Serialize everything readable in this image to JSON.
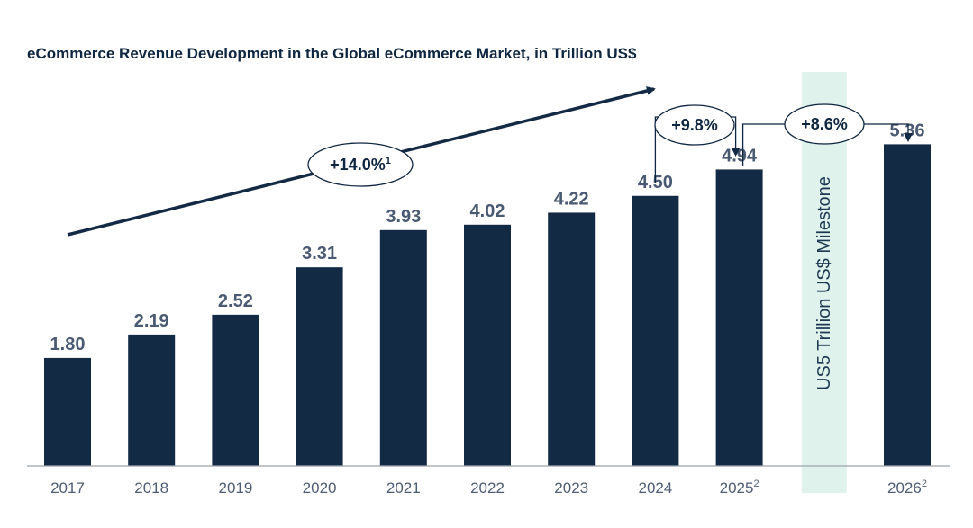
{
  "chart_data": {
    "type": "bar",
    "title": "eCommerce Revenue Development in the Global eCommerce Market, in Trillion US$",
    "categories": [
      {
        "label": "2017",
        "sup": ""
      },
      {
        "label": "2018",
        "sup": ""
      },
      {
        "label": "2019",
        "sup": ""
      },
      {
        "label": "2020",
        "sup": ""
      },
      {
        "label": "2021",
        "sup": ""
      },
      {
        "label": "2022",
        "sup": ""
      },
      {
        "label": "2023",
        "sup": ""
      },
      {
        "label": "2024",
        "sup": ""
      },
      {
        "label": "2025",
        "sup": "2"
      },
      {
        "label": "",
        "sup": ""
      },
      {
        "label": "2026",
        "sup": "2"
      }
    ],
    "values": [
      1.8,
      2.19,
      2.52,
      3.31,
      3.93,
      4.02,
      4.22,
      4.5,
      4.94,
      null,
      5.36
    ],
    "value_labels": [
      "1.80",
      "2.19",
      "2.52",
      "3.31",
      "3.93",
      "4.02",
      "4.22",
      "4.50",
      "4.94",
      "",
      "5.36"
    ],
    "ylim": [
      0,
      6.7
    ],
    "grid": false,
    "milestone": {
      "text": "US5 Trillion US$ Milestone",
      "category_index": 9
    },
    "annotations": [
      {
        "text": "+14.0%",
        "sup": "1",
        "type": "trend-arrow"
      },
      {
        "text": "+9.8%",
        "sup": "",
        "type": "step",
        "from_index": 7,
        "to_index": 8
      },
      {
        "text": "+8.6%",
        "sup": "",
        "type": "step",
        "from_index": 8,
        "to_index": 10
      }
    ]
  },
  "colors": {
    "bar": "#132a45",
    "text_dark": "#0f2640",
    "value_label": "#4a5a73",
    "tick_label": "#4e5d73",
    "milestone_band": "#dff2ec",
    "milestone_text": "#1d3a52",
    "axis": "#9aa3ad"
  }
}
